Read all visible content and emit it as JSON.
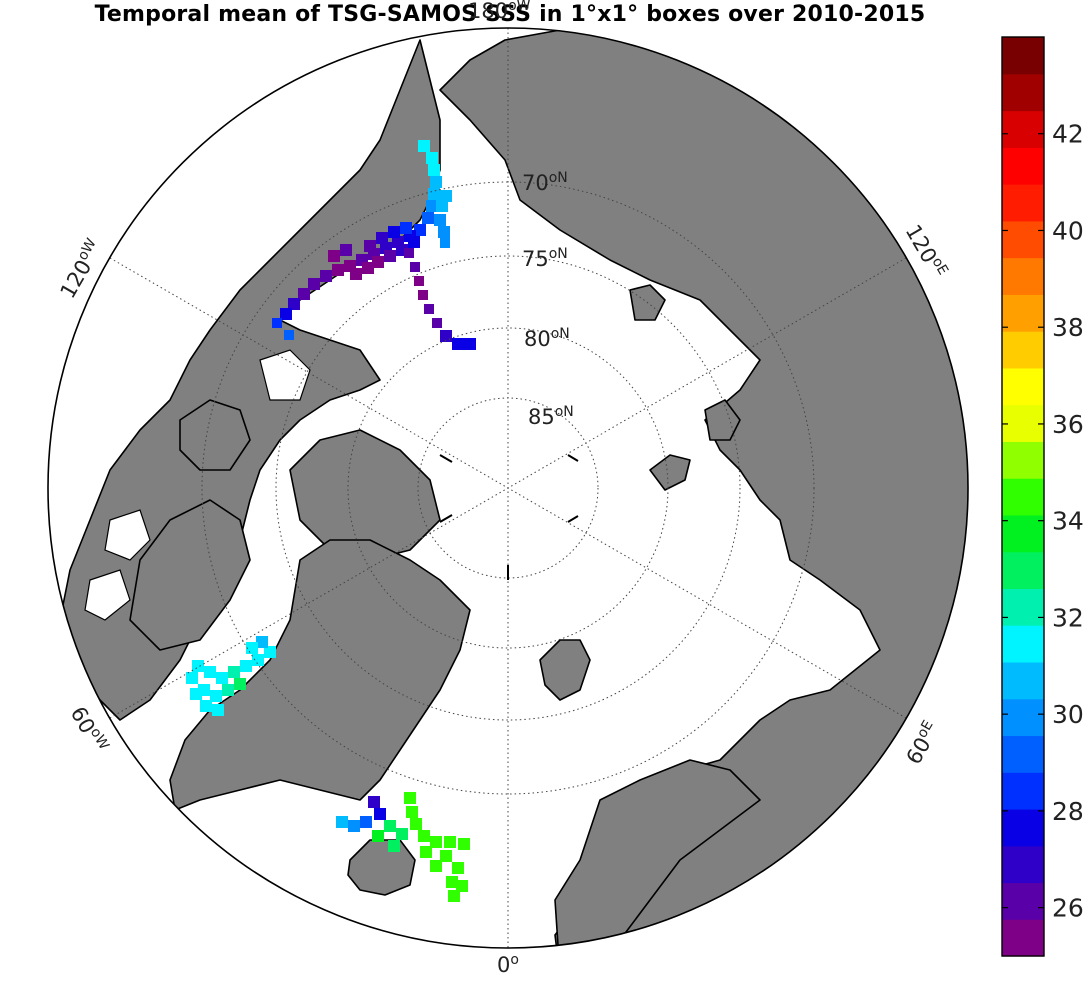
{
  "title": "Temporal mean of TSG-SAMOS SSS in 1°x1° boxes over 2010-2015",
  "map": {
    "projection": "north-polar-stereographic",
    "colors": {
      "land": "#808080",
      "ocean": "#ffffff",
      "coast": "#000000",
      "grid": "#444444"
    },
    "lat_circles": [
      {
        "lat": 70,
        "label": "70",
        "unit": "oN"
      },
      {
        "lat": 75,
        "label": "75",
        "unit": "oN"
      },
      {
        "lat": 80,
        "label": "80",
        "unit": "oN"
      },
      {
        "lat": 85,
        "label": "85",
        "unit": "oN"
      }
    ],
    "lon_labels": [
      {
        "lon": 0,
        "label": "0",
        "unit": "o"
      },
      {
        "lon": 60,
        "label": "60",
        "unit": "oE"
      },
      {
        "lon": 120,
        "label": "120",
        "unit": "oE"
      },
      {
        "lon": 180,
        "label": "180",
        "unit": "oW"
      },
      {
        "lon": -120,
        "label": "120",
        "unit": "oW"
      },
      {
        "lon": -60,
        "label": "60",
        "unit": "oW"
      }
    ]
  },
  "colorbar": {
    "min": 25,
    "max": 44,
    "ticks": [
      "26",
      "28",
      "30",
      "32",
      "34",
      "36",
      "38",
      "40",
      "42"
    ],
    "colors": [
      "#7d0086",
      "#5a00a8",
      "#2f00c8",
      "#0a00e6",
      "#0030ff",
      "#0060ff",
      "#0090ff",
      "#00bcff",
      "#00f4ff",
      "#00f0b0",
      "#00f060",
      "#00f020",
      "#30ff00",
      "#90ff00",
      "#e8ff00",
      "#ffff00",
      "#ffcc00",
      "#ffa000",
      "#ff7800",
      "#ff4c00",
      "#ff1c00",
      "#ff0000",
      "#d80000",
      "#a00000",
      "#780000"
    ]
  },
  "chart_data": {
    "type": "heatmap",
    "title": "Temporal mean of TSG-SAMOS SSS in 1°x1° boxes over 2010-2015",
    "colorbar_range": [
      25,
      44
    ],
    "colorbar_ticks": [
      26,
      28,
      30,
      32,
      34,
      36,
      38,
      40,
      42
    ],
    "regions": [
      {
        "name": "",
        "lat_range": [
          70,
          81
        ],
        "lon_range": [
          -180,
          -140
        ],
        "sss_range": [
          25,
          31
        ]
      },
      {
        "name": "",
        "lat_range": [
          65,
          76
        ],
        "lon_range": [
          -180,
          -165
        ],
        "sss_range": [
          30,
          32
        ]
      },
      {
        "name": "",
        "lat_range": [
          63,
          70
        ],
        "lon_range": [
          -63,
          -52
        ],
        "sss_range": [
          31,
          33
        ]
      },
      {
        "name": "",
        "lat_range": [
          60,
          67
        ],
        "lon_range": [
          -20,
          -8
        ],
        "sss_range": [
          27,
          35
        ]
      }
    ]
  }
}
